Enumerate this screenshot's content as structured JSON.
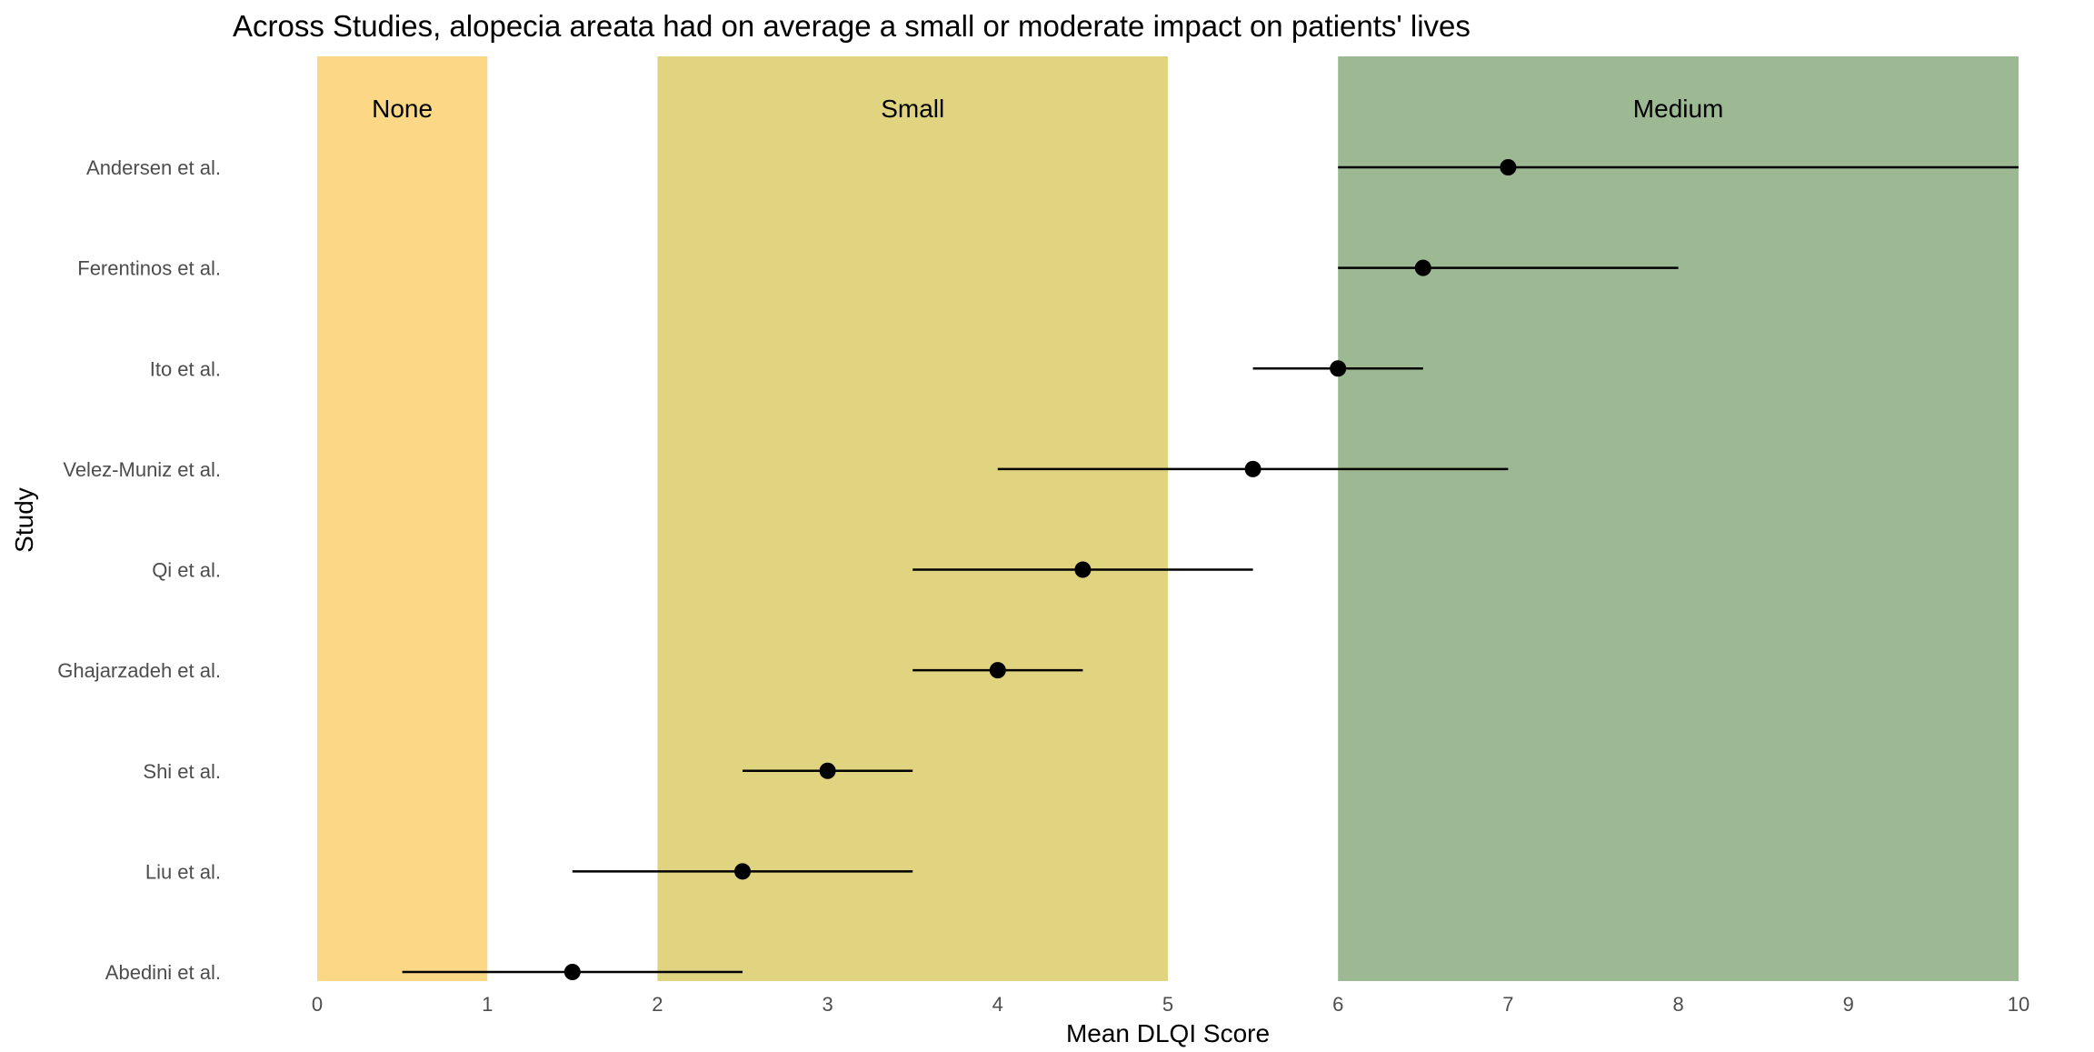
{
  "chart_data": {
    "type": "scatter",
    "title": "Across Studies, alopecia areata had on average a small or moderate impact on patients' lives",
    "xlabel": "Mean DLQI Score",
    "ylabel": "Study",
    "xlim": [
      0,
      10
    ],
    "x_ticks": [
      "0",
      "1",
      "2",
      "3",
      "4",
      "5",
      "6",
      "7",
      "8",
      "9",
      "10"
    ],
    "grid": false,
    "bands": [
      {
        "label": "None",
        "from": 0,
        "to": 1,
        "color": "#FCD786"
      },
      {
        "label": "Small",
        "from": 2,
        "to": 5,
        "color": "#E0D481"
      },
      {
        "label": "Medium",
        "from": 6,
        "to": 10,
        "color": "#9CB994"
      }
    ],
    "studies": [
      {
        "name": "Andersen et al.",
        "mean": 7.0,
        "low": 6.0,
        "high": 10.0
      },
      {
        "name": "Ferentinos et al.",
        "mean": 6.5,
        "low": 6.0,
        "high": 8.0
      },
      {
        "name": "Ito et al.",
        "mean": 6.0,
        "low": 5.5,
        "high": 6.5
      },
      {
        "name": "Velez-Muniz et al.",
        "mean": 5.5,
        "low": 4.0,
        "high": 7.0
      },
      {
        "name": "Qi et al.",
        "mean": 4.5,
        "low": 3.5,
        "high": 5.5
      },
      {
        "name": "Ghajarzadeh et al.",
        "mean": 4.0,
        "low": 3.5,
        "high": 4.5
      },
      {
        "name": "Shi et al.",
        "mean": 3.0,
        "low": 2.5,
        "high": 3.5
      },
      {
        "name": "Liu et al.",
        "mean": 2.5,
        "low": 1.5,
        "high": 3.5
      },
      {
        "name": "Abedini et al.",
        "mean": 1.5,
        "low": 0.5,
        "high": 2.5
      }
    ],
    "colors": {
      "point": "#000000",
      "errorbar": "#000000",
      "tick_text": "#4d4d4d"
    }
  }
}
